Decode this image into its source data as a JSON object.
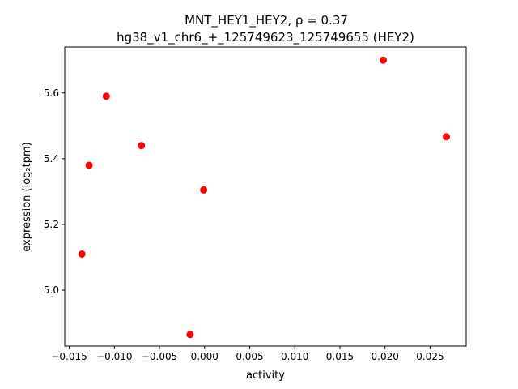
{
  "chart_data": {
    "type": "scatter",
    "title": "MNT_HEY1_HEY2, ρ = 0.37",
    "subtitle": "hg38_v1_chr6_+_125749623_125749655 (HEY2)",
    "xlabel": "activity",
    "ylabel": "expression (log₂tpm)",
    "xlim": [
      -0.0155,
      0.029
    ],
    "ylim": [
      4.83,
      5.74
    ],
    "xticks": [
      -0.015,
      -0.01,
      -0.005,
      0.0,
      0.005,
      0.01,
      0.015,
      0.02,
      0.025
    ],
    "xtick_labels": [
      "−0.015",
      "−0.010",
      "−0.005",
      "0.000",
      "0.005",
      "0.010",
      "0.015",
      "0.020",
      "0.025"
    ],
    "yticks": [
      5.0,
      5.2,
      5.4,
      5.6
    ],
    "ytick_labels": [
      "5.0",
      "5.2",
      "5.4",
      "5.6"
    ],
    "grid": false,
    "marker_color": "#ff0000",
    "points": [
      {
        "x": -0.0136,
        "y": 5.11
      },
      {
        "x": -0.0128,
        "y": 5.38
      },
      {
        "x": -0.0109,
        "y": 5.59
      },
      {
        "x": -0.007,
        "y": 5.44
      },
      {
        "x": -0.0016,
        "y": 4.865
      },
      {
        "x": -0.0001,
        "y": 5.305
      },
      {
        "x": 0.0198,
        "y": 5.7
      },
      {
        "x": 0.0268,
        "y": 5.467
      }
    ]
  }
}
